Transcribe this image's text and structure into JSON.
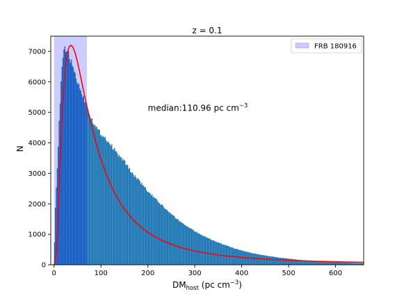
{
  "chart_data": {
    "type": "bar",
    "title": "z = 0.1",
    "xlabel_main": "DM",
    "xlabel_sub": "host",
    "xlabel_rest_pre": " (pc cm",
    "xlabel_sup": "−3",
    "xlabel_rest_post": ")",
    "ylabel": "N",
    "xlim": [
      -7,
      660
    ],
    "ylim": [
      0,
      7500
    ],
    "x_ticks": [
      0,
      100,
      200,
      300,
      400,
      500,
      600
    ],
    "y_ticks": [
      0,
      1000,
      2000,
      3000,
      4000,
      5000,
      6000,
      7000
    ],
    "annotation": {
      "text_main": "median:110.96 pc cm",
      "text_sup": "−3",
      "x": 200,
      "y": 5050
    },
    "legend": {
      "label": "FRB 180916",
      "placement": "upper right"
    },
    "shaded_region": {
      "label": "FRB 180916",
      "x_start": 0,
      "x_end": 70,
      "color": "#0000ff",
      "alpha": 0.2
    },
    "histogram": {
      "color": "#1f77b4",
      "bin_width": 2,
      "x_range": [
        0,
        660
      ],
      "profile_points": [
        [
          0,
          0
        ],
        [
          2,
          1500
        ],
        [
          4,
          2300
        ],
        [
          6,
          2800
        ],
        [
          8,
          3500
        ],
        [
          10,
          4300
        ],
        [
          12,
          5000
        ],
        [
          14,
          5700
        ],
        [
          16,
          6200
        ],
        [
          18,
          6600
        ],
        [
          20,
          6900
        ],
        [
          22,
          7100
        ],
        [
          24,
          7150
        ],
        [
          26,
          7000
        ],
        [
          28,
          7000
        ],
        [
          30,
          6950
        ],
        [
          35,
          6700
        ],
        [
          40,
          6500
        ],
        [
          45,
          6250
        ],
        [
          50,
          6000
        ],
        [
          55,
          5800
        ],
        [
          60,
          5600
        ],
        [
          65,
          5400
        ],
        [
          70,
          5200
        ],
        [
          80,
          4800
        ],
        [
          90,
          4500
        ],
        [
          100,
          4300
        ],
        [
          110,
          4150
        ],
        [
          120,
          3950
        ],
        [
          130,
          3750
        ],
        [
          140,
          3550
        ],
        [
          150,
          3400
        ],
        [
          160,
          3150
        ],
        [
          170,
          2950
        ],
        [
          180,
          2780
        ],
        [
          190,
          2600
        ],
        [
          200,
          2400
        ],
        [
          220,
          2100
        ],
        [
          240,
          1800
        ],
        [
          260,
          1520
        ],
        [
          280,
          1300
        ],
        [
          300,
          1100
        ],
        [
          320,
          930
        ],
        [
          340,
          790
        ],
        [
          360,
          670
        ],
        [
          380,
          560
        ],
        [
          400,
          470
        ],
        [
          420,
          390
        ],
        [
          440,
          330
        ],
        [
          460,
          280
        ],
        [
          480,
          235
        ],
        [
          500,
          200
        ],
        [
          520,
          165
        ],
        [
          540,
          140
        ],
        [
          560,
          118
        ],
        [
          580,
          100
        ],
        [
          600,
          85
        ],
        [
          620,
          72
        ],
        [
          640,
          60
        ],
        [
          660,
          52
        ]
      ]
    },
    "fit_curve": {
      "color": "#ff0000",
      "points": [
        [
          0,
          0
        ],
        [
          3,
          120
        ],
        [
          6,
          600
        ],
        [
          9,
          1700
        ],
        [
          12,
          3000
        ],
        [
          15,
          4200
        ],
        [
          18,
          5150
        ],
        [
          21,
          5850
        ],
        [
          24,
          6400
        ],
        [
          27,
          6800
        ],
        [
          30,
          7050
        ],
        [
          33,
          7170
        ],
        [
          36,
          7200
        ],
        [
          40,
          7150
        ],
        [
          45,
          6950
        ],
        [
          50,
          6650
        ],
        [
          55,
          6300
        ],
        [
          60,
          5920
        ],
        [
          70,
          5200
        ],
        [
          80,
          4550
        ],
        [
          90,
          3970
        ],
        [
          100,
          3450
        ],
        [
          110,
          3020
        ],
        [
          120,
          2650
        ],
        [
          130,
          2330
        ],
        [
          140,
          2060
        ],
        [
          150,
          1820
        ],
        [
          170,
          1450
        ],
        [
          190,
          1170
        ],
        [
          210,
          960
        ],
        [
          230,
          800
        ],
        [
          250,
          670
        ],
        [
          270,
          565
        ],
        [
          300,
          450
        ],
        [
          330,
          365
        ],
        [
          360,
          300
        ],
        [
          400,
          240
        ],
        [
          450,
          185
        ],
        [
          500,
          148
        ],
        [
          550,
          120
        ],
        [
          600,
          98
        ],
        [
          660,
          82
        ]
      ]
    }
  }
}
